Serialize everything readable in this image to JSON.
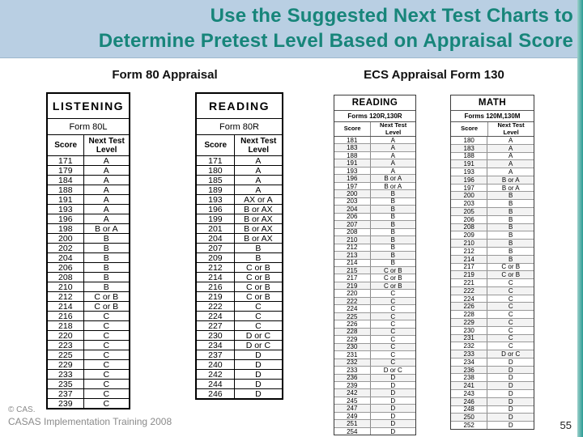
{
  "slide_title": {
    "line1": "Use the Suggested Next Test Charts to",
    "line2": "Determine Pretest Level Based on Appraisal Score"
  },
  "section_headers": {
    "form80": "Form 80 Appraisal",
    "ecs": "ECS Appraisal Form 130"
  },
  "column_headers": {
    "score": "Score",
    "level": "Next Test Level"
  },
  "tables": [
    {
      "id": "listening-form-80l",
      "title": "LISTENING",
      "subtitle": "Form 80L",
      "rows": [
        [
          "171",
          "A"
        ],
        [
          "179",
          "A"
        ],
        [
          "184",
          "A"
        ],
        [
          "188",
          "A"
        ],
        [
          "191",
          "A"
        ],
        [
          "193",
          "A"
        ],
        [
          "196",
          "A"
        ],
        [
          "198",
          "B or A"
        ],
        [
          "200",
          "B"
        ],
        [
          "202",
          "B"
        ],
        [
          "204",
          "B"
        ],
        [
          "206",
          "B"
        ],
        [
          "208",
          "B"
        ],
        [
          "210",
          "B"
        ],
        [
          "212",
          "C or B"
        ],
        [
          "214",
          "C or B"
        ],
        [
          "216",
          "C"
        ],
        [
          "218",
          "C"
        ],
        [
          "220",
          "C"
        ],
        [
          "223",
          "C"
        ],
        [
          "225",
          "C"
        ],
        [
          "229",
          "C"
        ],
        [
          "233",
          "C"
        ],
        [
          "235",
          "C"
        ],
        [
          "237",
          "C"
        ],
        [
          "239",
          "C"
        ]
      ]
    },
    {
      "id": "reading-form-80r",
      "title": "READING",
      "subtitle": "Form 80R",
      "rows": [
        [
          "171",
          "A"
        ],
        [
          "180",
          "A"
        ],
        [
          "185",
          "A"
        ],
        [
          "189",
          "A"
        ],
        [
          "193",
          "AX or A"
        ],
        [
          "196",
          "B or AX"
        ],
        [
          "199",
          "B or AX"
        ],
        [
          "201",
          "B or AX"
        ],
        [
          "204",
          "B or AX"
        ],
        [
          "207",
          "B"
        ],
        [
          "209",
          "B"
        ],
        [
          "212",
          "C or B"
        ],
        [
          "214",
          "C or B"
        ],
        [
          "216",
          "C or B"
        ],
        [
          "219",
          "C or B"
        ],
        [
          "222",
          "C"
        ],
        [
          "224",
          "C"
        ],
        [
          "227",
          "C"
        ],
        [
          "230",
          "D or C"
        ],
        [
          "234",
          "D or C"
        ],
        [
          "237",
          "D"
        ],
        [
          "240",
          "D"
        ],
        [
          "242",
          "D"
        ],
        [
          "244",
          "D"
        ],
        [
          "246",
          "D"
        ]
      ]
    },
    {
      "id": "reading-forms-120r-130r",
      "title": "READING",
      "subtitle": "Forms 120R,130R",
      "rows": [
        [
          "181",
          "A"
        ],
        [
          "183",
          "A"
        ],
        [
          "188",
          "A"
        ],
        [
          "191",
          "A"
        ],
        [
          "193",
          "A"
        ],
        [
          "196",
          "B or A"
        ],
        [
          "197",
          "B or A"
        ],
        [
          "200",
          "B"
        ],
        [
          "203",
          "B"
        ],
        [
          "204",
          "B"
        ],
        [
          "206",
          "B"
        ],
        [
          "207",
          "B"
        ],
        [
          "208",
          "B"
        ],
        [
          "210",
          "B"
        ],
        [
          "212",
          "B"
        ],
        [
          "213",
          "B"
        ],
        [
          "214",
          "B"
        ],
        [
          "215",
          "C or B"
        ],
        [
          "217",
          "C or B"
        ],
        [
          "219",
          "C or B"
        ],
        [
          "220",
          "C"
        ],
        [
          "222",
          "C"
        ],
        [
          "224",
          "C"
        ],
        [
          "225",
          "C"
        ],
        [
          "226",
          "C"
        ],
        [
          "228",
          "C"
        ],
        [
          "229",
          "C"
        ],
        [
          "230",
          "C"
        ],
        [
          "231",
          "C"
        ],
        [
          "232",
          "C"
        ],
        [
          "233",
          "D or C"
        ],
        [
          "236",
          "D"
        ],
        [
          "239",
          "D"
        ],
        [
          "242",
          "D"
        ],
        [
          "245",
          "D"
        ],
        [
          "247",
          "D"
        ],
        [
          "249",
          "D"
        ],
        [
          "251",
          "D"
        ],
        [
          "254",
          "D"
        ]
      ]
    },
    {
      "id": "math-forms-120m-130m",
      "title": "MATH",
      "subtitle": "Forms 120M,130M",
      "rows": [
        [
          "180",
          "A"
        ],
        [
          "183",
          "A"
        ],
        [
          "188",
          "A"
        ],
        [
          "191",
          "A"
        ],
        [
          "193",
          "A"
        ],
        [
          "196",
          "B or A"
        ],
        [
          "197",
          "B or A"
        ],
        [
          "200",
          "B"
        ],
        [
          "203",
          "B"
        ],
        [
          "205",
          "B"
        ],
        [
          "206",
          "B"
        ],
        [
          "208",
          "B"
        ],
        [
          "209",
          "B"
        ],
        [
          "210",
          "B"
        ],
        [
          "212",
          "B"
        ],
        [
          "214",
          "B"
        ],
        [
          "217",
          "C or B"
        ],
        [
          "219",
          "C or B"
        ],
        [
          "221",
          "C"
        ],
        [
          "222",
          "C"
        ],
        [
          "224",
          "C"
        ],
        [
          "226",
          "C"
        ],
        [
          "228",
          "C"
        ],
        [
          "229",
          "C"
        ],
        [
          "230",
          "C"
        ],
        [
          "231",
          "C"
        ],
        [
          "232",
          "C"
        ],
        [
          "233",
          "D or C"
        ],
        [
          "234",
          "D"
        ],
        [
          "236",
          "D"
        ],
        [
          "238",
          "D"
        ],
        [
          "241",
          "D"
        ],
        [
          "243",
          "D"
        ],
        [
          "246",
          "D"
        ],
        [
          "248",
          "D"
        ],
        [
          "250",
          "D"
        ],
        [
          "252",
          "D"
        ]
      ]
    }
  ],
  "footer": {
    "copyright": "© CAS.",
    "training_line": "CASAS Implementation Training 2008",
    "page_number": "55"
  },
  "colors": {
    "banner_bg": "#b9cfe3",
    "title_text": "#17857a",
    "edge_strip": "#2a9b93",
    "footer_text": "#8a8a8a"
  }
}
